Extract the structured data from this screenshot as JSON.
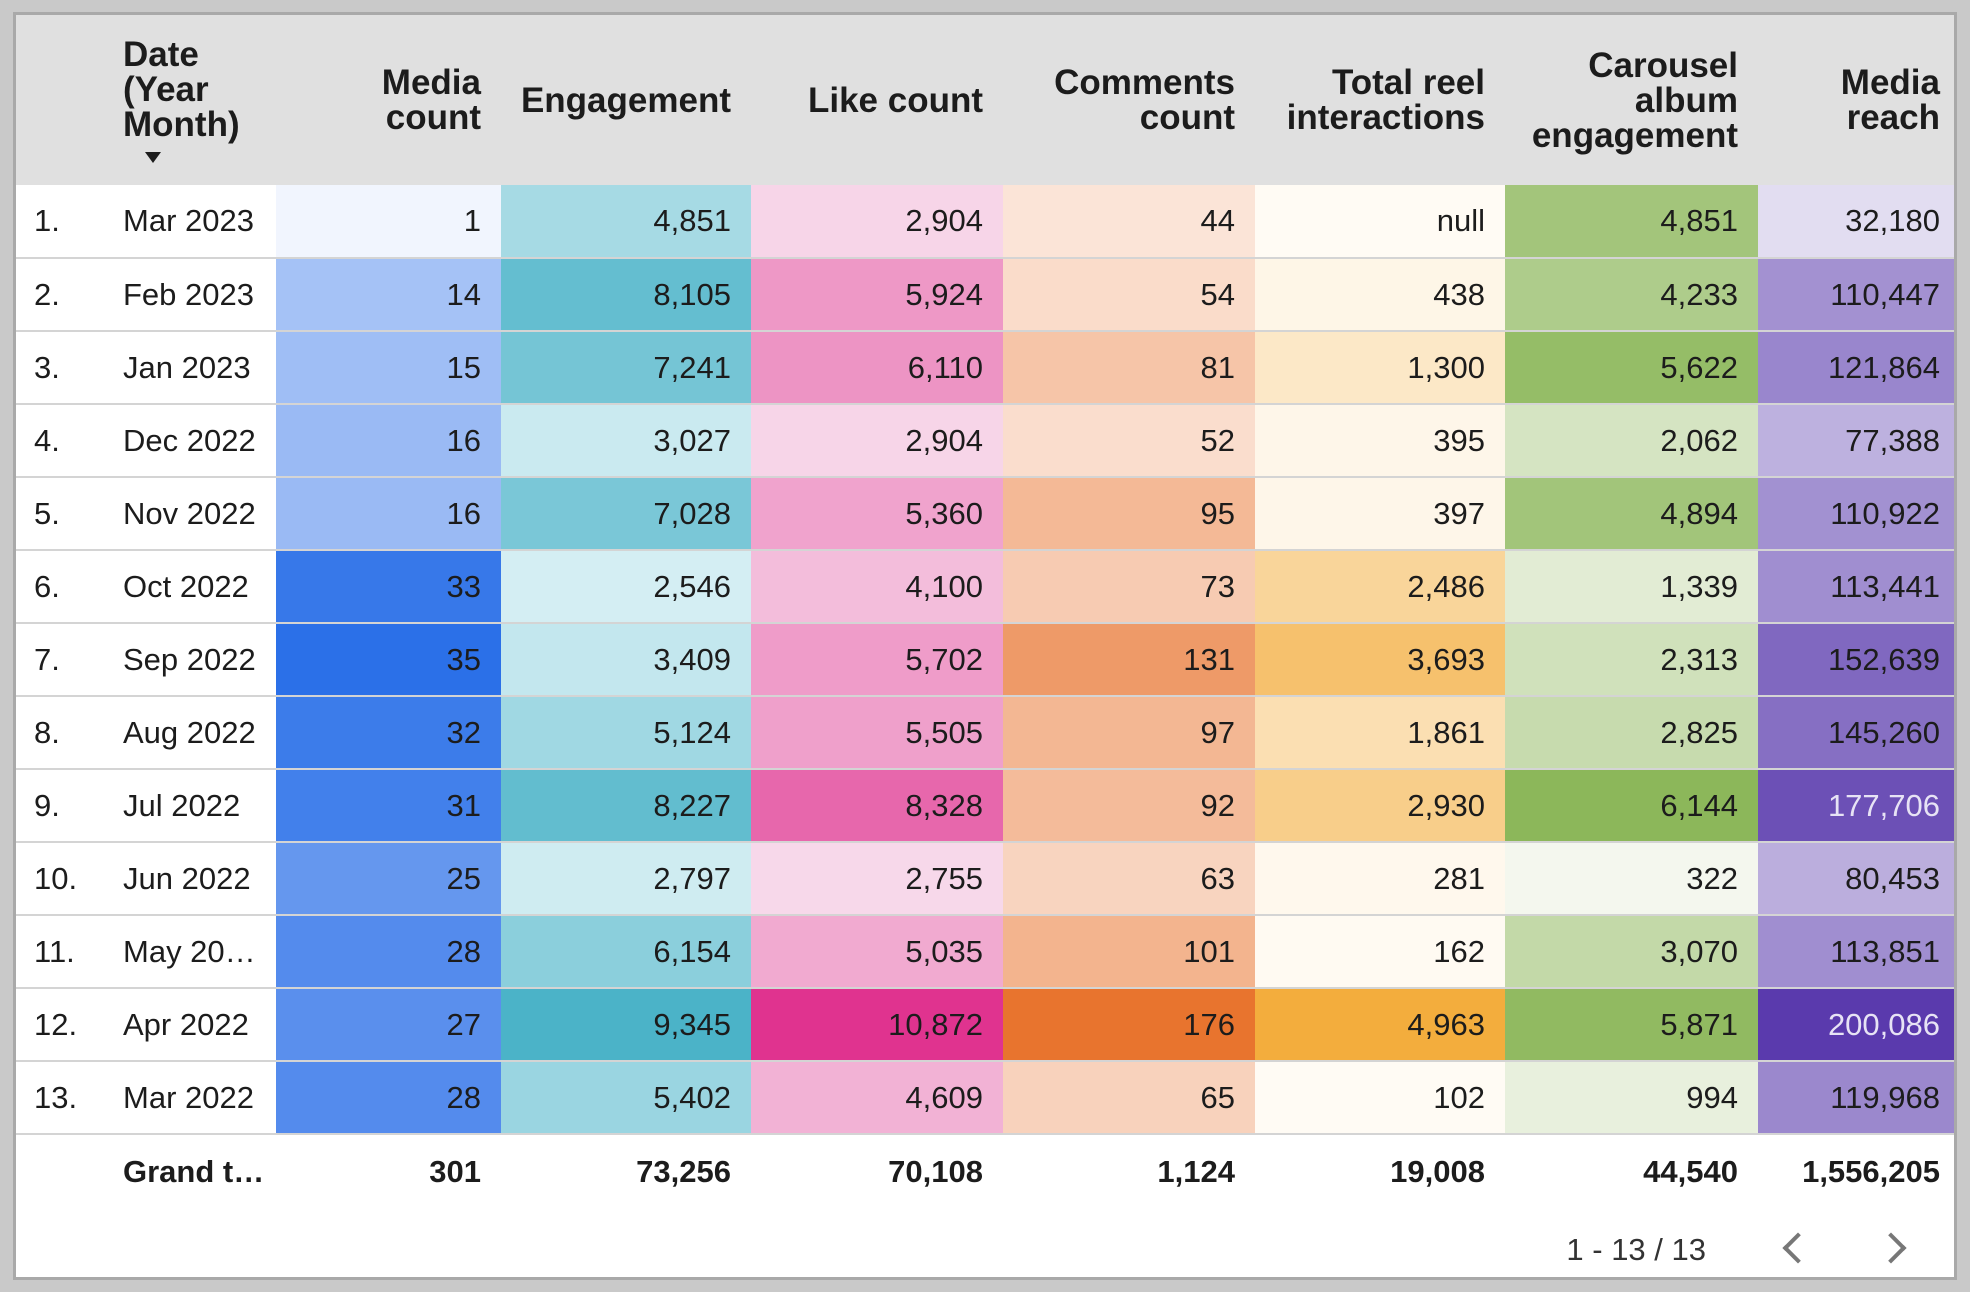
{
  "table": {
    "headers": {
      "index": "",
      "date": "Date (Year Month)",
      "media_count": "Media count",
      "engagement": "Engagement",
      "like_count": "Like count",
      "comments_count": "Comments count",
      "total_reel_interactions": "Total reel interactions",
      "carousel_album_engagement": "Carousel album engagement",
      "media_reach": "Media reach"
    },
    "sort": {
      "column": "date",
      "direction": "descending"
    },
    "rows": [
      {
        "index": "1.",
        "date": "Mar 2023",
        "media_count": "1",
        "engagement": "4,851",
        "like_count": "2,904",
        "comments_count": "44",
        "total_reel_interactions": "null",
        "carousel_album_engagement": "4,851",
        "media_reach": "32,180"
      },
      {
        "index": "2.",
        "date": "Feb 2023",
        "media_count": "14",
        "engagement": "8,105",
        "like_count": "5,924",
        "comments_count": "54",
        "total_reel_interactions": "438",
        "carousel_album_engagement": "4,233",
        "media_reach": "110,447"
      },
      {
        "index": "3.",
        "date": "Jan 2023",
        "media_count": "15",
        "engagement": "7,241",
        "like_count": "6,110",
        "comments_count": "81",
        "total_reel_interactions": "1,300",
        "carousel_album_engagement": "5,622",
        "media_reach": "121,864"
      },
      {
        "index": "4.",
        "date": "Dec 2022",
        "media_count": "16",
        "engagement": "3,027",
        "like_count": "2,904",
        "comments_count": "52",
        "total_reel_interactions": "395",
        "carousel_album_engagement": "2,062",
        "media_reach": "77,388"
      },
      {
        "index": "5.",
        "date": "Nov 2022",
        "media_count": "16",
        "engagement": "7,028",
        "like_count": "5,360",
        "comments_count": "95",
        "total_reel_interactions": "397",
        "carousel_album_engagement": "4,894",
        "media_reach": "110,922"
      },
      {
        "index": "6.",
        "date": "Oct 2022",
        "media_count": "33",
        "engagement": "2,546",
        "like_count": "4,100",
        "comments_count": "73",
        "total_reel_interactions": "2,486",
        "carousel_album_engagement": "1,339",
        "media_reach": "113,441"
      },
      {
        "index": "7.",
        "date": "Sep 2022",
        "media_count": "35",
        "engagement": "3,409",
        "like_count": "5,702",
        "comments_count": "131",
        "total_reel_interactions": "3,693",
        "carousel_album_engagement": "2,313",
        "media_reach": "152,639"
      },
      {
        "index": "8.",
        "date": "Aug 2022",
        "media_count": "32",
        "engagement": "5,124",
        "like_count": "5,505",
        "comments_count": "97",
        "total_reel_interactions": "1,861",
        "carousel_album_engagement": "2,825",
        "media_reach": "145,260"
      },
      {
        "index": "9.",
        "date": "Jul 2022",
        "media_count": "31",
        "engagement": "8,227",
        "like_count": "8,328",
        "comments_count": "92",
        "total_reel_interactions": "2,930",
        "carousel_album_engagement": "6,144",
        "media_reach": "177,706"
      },
      {
        "index": "10.",
        "date": "Jun 2022",
        "media_count": "25",
        "engagement": "2,797",
        "like_count": "2,755",
        "comments_count": "63",
        "total_reel_interactions": "281",
        "carousel_album_engagement": "322",
        "media_reach": "80,453"
      },
      {
        "index": "11.",
        "date": "May 20…",
        "media_count": "28",
        "engagement": "6,154",
        "like_count": "5,035",
        "comments_count": "101",
        "total_reel_interactions": "162",
        "carousel_album_engagement": "3,070",
        "media_reach": "113,851"
      },
      {
        "index": "12.",
        "date": "Apr 2022",
        "media_count": "27",
        "engagement": "9,345",
        "like_count": "10,872",
        "comments_count": "176",
        "total_reel_interactions": "4,963",
        "carousel_album_engagement": "5,871",
        "media_reach": "200,086"
      },
      {
        "index": "13.",
        "date": "Mar 2022",
        "media_count": "28",
        "engagement": "5,402",
        "like_count": "4,609",
        "comments_count": "65",
        "total_reel_interactions": "102",
        "carousel_album_engagement": "994",
        "media_reach": "119,968"
      }
    ],
    "grand_total": {
      "label": "Grand t…",
      "media_count": "301",
      "engagement": "73,256",
      "like_count": "70,108",
      "comments_count": "1,124",
      "total_reel_interactions": "19,008",
      "carousel_album_engagement": "44,540",
      "media_reach": "1,556,205"
    },
    "heatmap_colors": {
      "media_count": {
        "low": "#f1f5fe",
        "high": "#2b70e8"
      },
      "engagement": {
        "low": "#d4eef3",
        "high": "#4bb3c8"
      },
      "like_count": {
        "low": "#f7d8ea",
        "high": "#e0338f"
      },
      "comments_count": {
        "low": "#fbe4d7",
        "high": "#e8742e"
      },
      "total_reel_interactions": {
        "low": "#fffbf4",
        "high": "#f3ad3d"
      },
      "carousel_album_engagement": {
        "low": "#f4f7ee",
        "high": "#8cb75a"
      },
      "media_reach": {
        "low": "#e2ddf1",
        "high": "#5a3aad"
      }
    }
  },
  "pagination": {
    "range_label": "1 - 13 / 13"
  }
}
